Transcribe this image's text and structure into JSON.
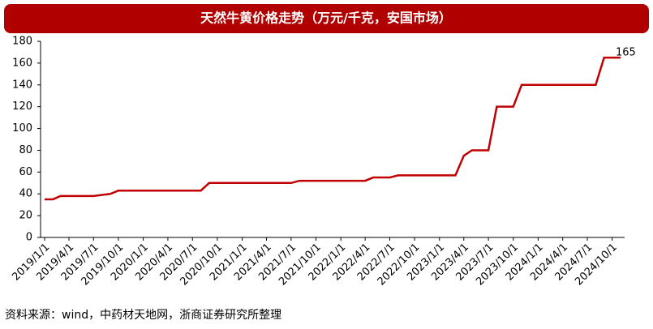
{
  "chart_data": {
    "type": "line",
    "title": "天然牛黄价格走势（万元/千克，安国市场）",
    "source": "资料来源：wind，中药材天地网，浙商证券研究所整理",
    "x": [
      "2019/1/1",
      "2019/2/1",
      "2019/3/1",
      "2019/7/1",
      "2019/9/1",
      "2019/10/1",
      "2020/8/1",
      "2020/9/1",
      "2021/7/1",
      "2021/8/1",
      "2022/4/1",
      "2022/5/1",
      "2022/7/1",
      "2022/8/1",
      "2023/3/1",
      "2023/4/1",
      "2023/5/1",
      "2023/7/1",
      "2023/8/1",
      "2023/10/1",
      "2023/11/1",
      "2024/8/1",
      "2024/9/1",
      "2024/11/1"
    ],
    "values": [
      35,
      35,
      38,
      38,
      40,
      43,
      43,
      50,
      50,
      52,
      52,
      55,
      55,
      57,
      57,
      75,
      80,
      80,
      120,
      120,
      140,
      140,
      165,
      165
    ],
    "color": "#c00000",
    "xlim": [
      "2019/1/1",
      "2024/11/1"
    ],
    "xticks": [
      "2019/1/1",
      "2019/4/1",
      "2019/7/1",
      "2019/10/1",
      "2020/1/1",
      "2020/4/1",
      "2020/7/1",
      "2020/10/1",
      "2021/1/1",
      "2021/4/1",
      "2021/7/1",
      "2021/10/1",
      "2022/1/1",
      "2022/4/1",
      "2022/7/1",
      "2022/10/1",
      "2023/1/1",
      "2023/4/1",
      "2023/7/1",
      "2023/10/1",
      "2024/1/1",
      "2024/4/1",
      "2024/7/1",
      "2024/10/1"
    ],
    "ylim": [
      0,
      180
    ],
    "yticks": [
      0,
      20,
      40,
      60,
      80,
      100,
      120,
      140,
      160,
      180
    ]
  }
}
